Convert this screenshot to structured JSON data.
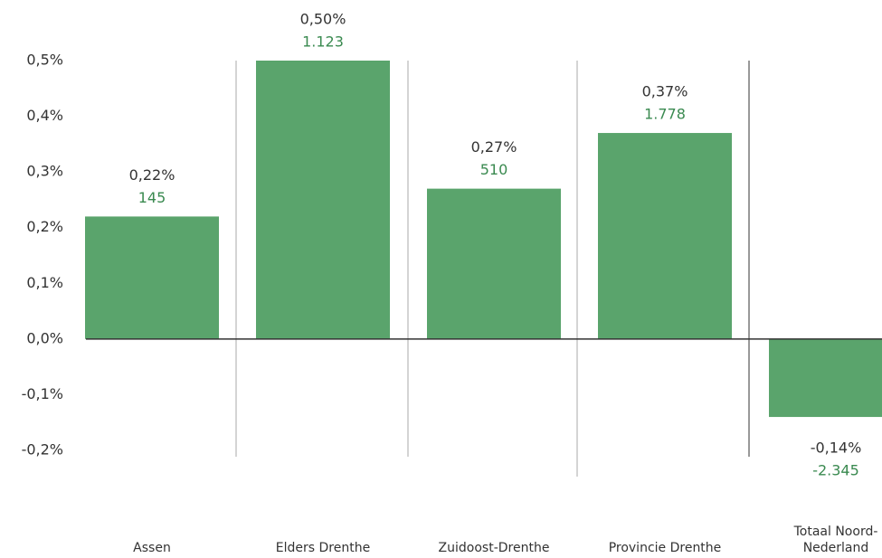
{
  "chart_data": {
    "type": "bar",
    "categories": [
      "Assen",
      "Elders Drenthe",
      "Zuidoost-Drenthe",
      "Provincie Drenthe",
      "Totaal Noord-Nederland"
    ],
    "values": [
      0.22,
      0.5,
      0.27,
      0.37,
      -0.14
    ],
    "value_labels": [
      "0,22%",
      "0,50%",
      "0,27%",
      "0,37%",
      "-0,14%"
    ],
    "counts": [
      145,
      1123,
      510,
      1778,
      -2345
    ],
    "count_labels": [
      "145",
      "1.123",
      "510",
      "1.778",
      "-2.345"
    ],
    "color": "#5aa46c",
    "ylim": [
      -0.2,
      0.5
    ],
    "yticks": [
      {
        "value": -0.2,
        "label": "-0,2%"
      },
      {
        "value": -0.1,
        "label": "-0,1%"
      },
      {
        "value": 0,
        "label": "0,0%"
      },
      {
        "value": 0.1,
        "label": "0,1%"
      },
      {
        "value": 0.2,
        "label": "0,2%"
      },
      {
        "value": 0.3,
        "label": "0,3%"
      },
      {
        "value": 0.4,
        "label": "0,4%"
      },
      {
        "value": 0.5,
        "label": "0,5%"
      }
    ],
    "grid": false
  }
}
